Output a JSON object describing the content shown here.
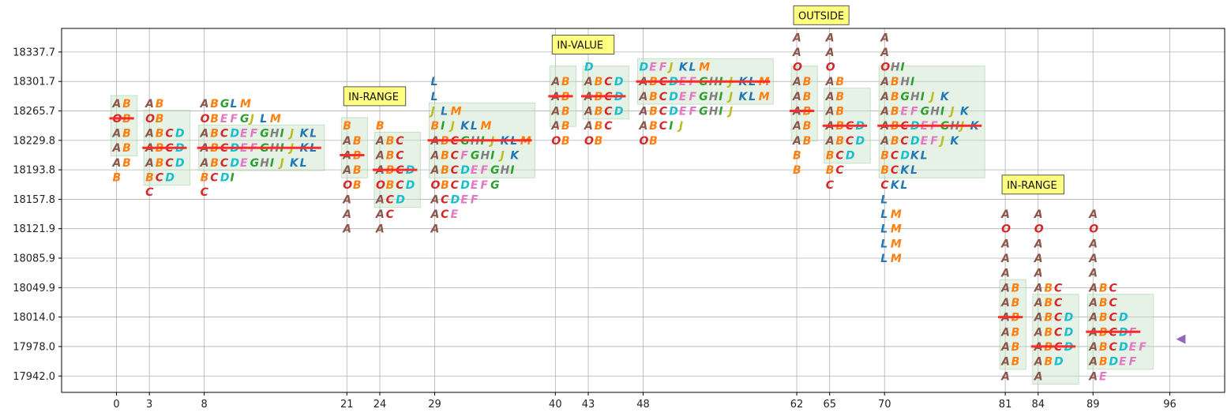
{
  "chart_data": {
    "type": "market-profile",
    "x_ticks": [
      0,
      3,
      8,
      21,
      24,
      29,
      40,
      43,
      48,
      62,
      65,
      70,
      81,
      84,
      89,
      96
    ],
    "x_range": [
      -5,
      101
    ],
    "y_ticks": [
      17942.0,
      17978.0,
      18014.0,
      18049.9,
      18085.9,
      18121.9,
      18157.8,
      18193.8,
      18229.8,
      18265.7,
      18301.7,
      18337.7
    ],
    "y_range": [
      17922.0,
      18366.5
    ],
    "grid": true,
    "row_step": 17.97,
    "letter_colors": {
      "A": "#8c564b",
      "O": "#d62728",
      "B": "#ff7f0e",
      "C": "#d62728",
      "D": "#17becf",
      "E": "#e377c2",
      "F": "#e377c2",
      "G": "#2ca02c",
      "H": "#7f7f7f",
      "I": "#2ca02c",
      "J": "#bcbd22",
      "K": "#1f77b4",
      "L": "#1f77b4",
      "M": "#ff7f0e"
    },
    "profiles": [
      {
        "x": 0,
        "poc": 18256.7,
        "va": [
          18220.7,
          18274.7
        ],
        "rows": [
          {
            "y": 18274.7,
            "t": "AB"
          },
          {
            "y": 18256.7,
            "t": "OB"
          },
          {
            "y": 18238.7,
            "t": "AB"
          },
          {
            "y": 18220.7,
            "t": "AB"
          },
          {
            "y": 18202.7,
            "t": "AB"
          },
          {
            "y": 18184.8,
            "t": "B"
          }
        ]
      },
      {
        "x": 3,
        "poc": 18220.7,
        "va": [
          18184.8,
          18256.7
        ],
        "rows": [
          {
            "y": 18274.7,
            "t": "AB"
          },
          {
            "y": 18256.7,
            "t": "OB"
          },
          {
            "y": 18238.7,
            "t": "ABCD"
          },
          {
            "y": 18220.7,
            "t": "ABCD"
          },
          {
            "y": 18202.7,
            "t": "ABCD"
          },
          {
            "y": 18184.8,
            "t": "BCD"
          },
          {
            "y": 18166.8,
            "t": "C"
          }
        ]
      },
      {
        "x": 8,
        "poc": 18220.7,
        "va": [
          18202.7,
          18238.7
        ],
        "rows": [
          {
            "y": 18274.7,
            "t": "ABGLM"
          },
          {
            "y": 18256.7,
            "t": "OBEFGJLM"
          },
          {
            "y": 18238.7,
            "t": "ABCDEFGHIJKL"
          },
          {
            "y": 18220.7,
            "t": "ABCDEFGHIJKL"
          },
          {
            "y": 18202.7,
            "t": "ABCDEGHIJKL"
          },
          {
            "y": 18184.8,
            "t": "BCDI"
          },
          {
            "y": 18166.8,
            "t": "C"
          }
        ]
      },
      {
        "x": 21,
        "poc": 18211.7,
        "va": [
          18193.8,
          18247.7
        ],
        "rows": [
          {
            "y": 18247.7,
            "t": "B"
          },
          {
            "y": 18229.8,
            "t": "AB"
          },
          {
            "y": 18211.7,
            "t": "AB"
          },
          {
            "y": 18193.8,
            "t": "AB"
          },
          {
            "y": 18175.8,
            "t": "OB"
          },
          {
            "y": 18157.8,
            "t": "A"
          },
          {
            "y": 18139.9,
            "t": "A"
          },
          {
            "y": 18121.9,
            "t": "A"
          }
        ]
      },
      {
        "x": 24,
        "poc": 18193.8,
        "va": [
          18157.8,
          18229.8
        ],
        "rows": [
          {
            "y": 18247.7,
            "t": "B"
          },
          {
            "y": 18229.8,
            "t": "ABC"
          },
          {
            "y": 18211.7,
            "t": "ABC"
          },
          {
            "y": 18193.8,
            "t": "ABCD"
          },
          {
            "y": 18175.8,
            "t": "OBCD"
          },
          {
            "y": 18157.8,
            "t": "ACD"
          },
          {
            "y": 18139.9,
            "t": "AC"
          },
          {
            "y": 18121.9,
            "t": "A"
          }
        ]
      },
      {
        "x": 29,
        "poc": 18229.8,
        "va": [
          18193.8,
          18265.7
        ],
        "rows": [
          {
            "y": 18301.7,
            "t": "L"
          },
          {
            "y": 18283.7,
            "t": "L"
          },
          {
            "y": 18265.7,
            "t": "JLM"
          },
          {
            "y": 18247.7,
            "t": "BIJKLM"
          },
          {
            "y": 18229.8,
            "t": "ABCGHIJKLM"
          },
          {
            "y": 18211.7,
            "t": "ABCFGHIJK"
          },
          {
            "y": 18193.8,
            "t": "ABCDEFGHI"
          },
          {
            "y": 18175.8,
            "t": "OBCDEFG"
          },
          {
            "y": 18157.8,
            "t": "ACDEF"
          },
          {
            "y": 18139.9,
            "t": "ACE"
          },
          {
            "y": 18121.9,
            "t": "A"
          }
        ]
      },
      {
        "x": 40,
        "poc": 18283.7,
        "va": [
          18256.7,
          18310.7
        ],
        "rows": [
          {
            "y": 18301.7,
            "t": "AB"
          },
          {
            "y": 18283.7,
            "t": "AB"
          },
          {
            "y": 18265.7,
            "t": "AB"
          },
          {
            "y": 18247.7,
            "t": "AB"
          },
          {
            "y": 18229.8,
            "t": "OB"
          }
        ]
      },
      {
        "x": 43,
        "poc": 18283.7,
        "va": [
          18265.7,
          18310.7
        ],
        "rows": [
          {
            "y": 18319.7,
            "t": "D"
          },
          {
            "y": 18301.7,
            "t": "ABCD"
          },
          {
            "y": 18283.7,
            "t": "ABCD"
          },
          {
            "y": 18265.7,
            "t": "ABCD"
          },
          {
            "y": 18247.7,
            "t": "ABC"
          },
          {
            "y": 18229.8,
            "t": "OB"
          }
        ]
      },
      {
        "x": 48,
        "poc": 18301.7,
        "va": [
          18283.7,
          18319.7
        ],
        "rows": [
          {
            "y": 18319.7,
            "t": "DEFJKLM"
          },
          {
            "y": 18301.7,
            "t": "ABCDEFGHIJKLM"
          },
          {
            "y": 18283.7,
            "t": "ABCDEFGHIJKLM"
          },
          {
            "y": 18265.7,
            "t": "ABCDEFGHIJ"
          },
          {
            "y": 18247.7,
            "t": "ABCIJ"
          },
          {
            "y": 18229.8,
            "t": "OB"
          }
        ]
      },
      {
        "x": 62,
        "poc": 18265.7,
        "va": [
          18238.7,
          18310.7
        ],
        "rows": [
          {
            "y": 18355.6,
            "t": "A"
          },
          {
            "y": 18337.7,
            "t": "A"
          },
          {
            "y": 18319.7,
            "t": "O"
          },
          {
            "y": 18301.7,
            "t": "AB"
          },
          {
            "y": 18283.7,
            "t": "AB"
          },
          {
            "y": 18265.7,
            "t": "AB"
          },
          {
            "y": 18247.7,
            "t": "AB"
          },
          {
            "y": 18229.8,
            "t": "AB"
          },
          {
            "y": 18211.7,
            "t": "B"
          },
          {
            "y": 18193.8,
            "t": "B"
          }
        ]
      },
      {
        "x": 65,
        "poc": 18247.7,
        "va": [
          18211.7,
          18283.7
        ],
        "rows": [
          {
            "y": 18355.6,
            "t": "A"
          },
          {
            "y": 18337.7,
            "t": "A"
          },
          {
            "y": 18319.7,
            "t": "O"
          },
          {
            "y": 18301.7,
            "t": "AB"
          },
          {
            "y": 18283.7,
            "t": "AB"
          },
          {
            "y": 18265.7,
            "t": "AB"
          },
          {
            "y": 18247.7,
            "t": "ABCD"
          },
          {
            "y": 18229.8,
            "t": "ABCD"
          },
          {
            "y": 18211.7,
            "t": "BCD"
          },
          {
            "y": 18193.8,
            "t": "BC"
          },
          {
            "y": 18175.8,
            "t": "C"
          }
        ]
      },
      {
        "x": 70,
        "poc": 18247.7,
        "va": [
          18193.8,
          18310.7
        ],
        "rows": [
          {
            "y": 18355.6,
            "t": "A"
          },
          {
            "y": 18337.7,
            "t": "A"
          },
          {
            "y": 18319.7,
            "t": "OHI"
          },
          {
            "y": 18301.7,
            "t": "ABHI"
          },
          {
            "y": 18283.7,
            "t": "ABGHIJK"
          },
          {
            "y": 18265.7,
            "t": "ABEFGHIJK"
          },
          {
            "y": 18247.7,
            "t": "ABCDEFGHJK"
          },
          {
            "y": 18229.8,
            "t": "ABCDEFJK"
          },
          {
            "y": 18211.7,
            "t": "BCDKL"
          },
          {
            "y": 18193.8,
            "t": "BCKL"
          },
          {
            "y": 18175.8,
            "t": "CKL"
          },
          {
            "y": 18157.8,
            "t": "L"
          },
          {
            "y": 18139.9,
            "t": "LM"
          },
          {
            "y": 18121.9,
            "t": "LM"
          },
          {
            "y": 18103.9,
            "t": "LM"
          },
          {
            "y": 18085.9,
            "t": "LM"
          }
        ]
      },
      {
        "x": 81,
        "poc": 18014.0,
        "va": [
          17960.0,
          18049.9
        ],
        "rows": [
          {
            "y": 18139.9,
            "t": "A"
          },
          {
            "y": 18121.9,
            "t": "O"
          },
          {
            "y": 18103.9,
            "t": "A"
          },
          {
            "y": 18085.9,
            "t": "A"
          },
          {
            "y": 18067.9,
            "t": "A"
          },
          {
            "y": 18049.9,
            "t": "AB"
          },
          {
            "y": 18031.9,
            "t": "AB"
          },
          {
            "y": 18014.0,
            "t": "AB"
          },
          {
            "y": 17996.0,
            "t": "AB"
          },
          {
            "y": 17978.0,
            "t": "AB"
          },
          {
            "y": 17960.0,
            "t": "AB"
          },
          {
            "y": 17942.0,
            "t": "A"
          }
        ]
      },
      {
        "x": 84,
        "poc": 17978.0,
        "va": [
          17942.0,
          18031.9
        ],
        "rows": [
          {
            "y": 18139.9,
            "t": "A"
          },
          {
            "y": 18121.9,
            "t": "O"
          },
          {
            "y": 18103.9,
            "t": "A"
          },
          {
            "y": 18085.9,
            "t": "A"
          },
          {
            "y": 18067.9,
            "t": "A"
          },
          {
            "y": 18049.9,
            "t": "ABC"
          },
          {
            "y": 18031.9,
            "t": "ABC"
          },
          {
            "y": 18014.0,
            "t": "ABCD"
          },
          {
            "y": 17996.0,
            "t": "ABCD"
          },
          {
            "y": 17978.0,
            "t": "ABCD"
          },
          {
            "y": 17960.0,
            "t": "ABD"
          },
          {
            "y": 17942.0,
            "t": "A"
          }
        ]
      },
      {
        "x": 89,
        "poc": 17996.0,
        "va": [
          17960.0,
          18031.9
        ],
        "rows": [
          {
            "y": 18139.9,
            "t": "A"
          },
          {
            "y": 18121.9,
            "t": "O"
          },
          {
            "y": 18103.9,
            "t": "A"
          },
          {
            "y": 18085.9,
            "t": "A"
          },
          {
            "y": 18067.9,
            "t": "A"
          },
          {
            "y": 18049.9,
            "t": "ABC"
          },
          {
            "y": 18031.9,
            "t": "ABC"
          },
          {
            "y": 18014.0,
            "t": "ABCD"
          },
          {
            "y": 17996.0,
            "t": "ABCDF"
          },
          {
            "y": 17978.0,
            "t": "ABCDEF"
          },
          {
            "y": 17960.0,
            "t": "ABDEF"
          },
          {
            "y": 17942.0,
            "t": "AE"
          }
        ]
      }
    ],
    "annotations": [
      {
        "text": "IN-RANGE",
        "x": 21,
        "y": 18283.7
      },
      {
        "text": "IN-VALUE",
        "x": 40,
        "y": 18346.7
      },
      {
        "text": "OUTSIDE",
        "x": 62,
        "y": 18382.6
      },
      {
        "text": "IN-RANGE",
        "x": 81,
        "y": 18175.8
      }
    ],
    "marker": {
      "x": 97,
      "y": 17987.0,
      "shape": "left-triangle",
      "color": "#9467bd"
    },
    "colors": {
      "poc": "#ff2a2a",
      "value_area": "#c8e2c8",
      "annotation_bg": "#ffff80",
      "grid": "#b0b0b0"
    }
  }
}
